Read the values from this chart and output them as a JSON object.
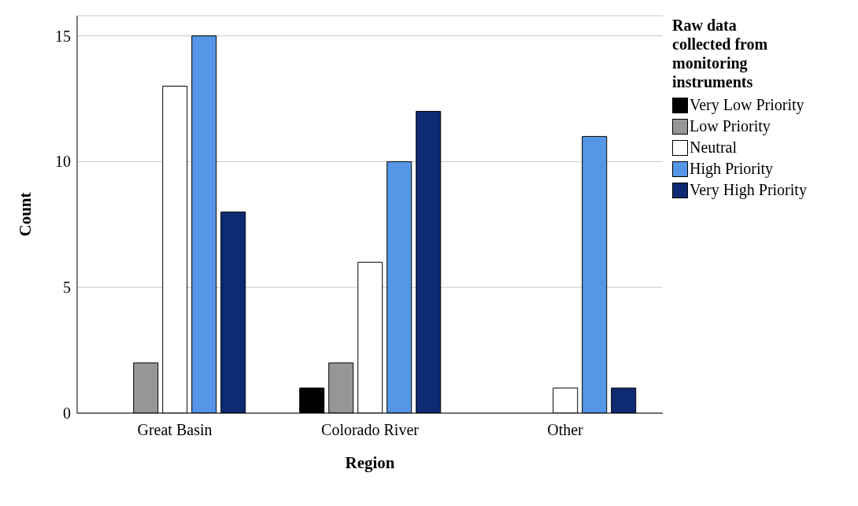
{
  "chart_data": {
    "type": "bar",
    "xlabel": "Region",
    "ylabel": "Count",
    "legend_title": "Raw data collected from monitoring instruments",
    "categories": [
      "Great Basin",
      "Colorado River",
      "Other"
    ],
    "series": [
      {
        "name": "Very Low Priority",
        "color": "#000000",
        "values": [
          null,
          1,
          null
        ]
      },
      {
        "name": "Low Priority",
        "color": "#969696",
        "values": [
          2,
          2,
          null
        ]
      },
      {
        "name": "Neutral",
        "color": "#ffffff",
        "values": [
          13,
          6,
          1
        ]
      },
      {
        "name": "High Priority",
        "color": "#5596e6",
        "values": [
          15,
          10,
          11
        ]
      },
      {
        "name": "Very High Priority",
        "color": "#0d2a72",
        "values": [
          8,
          12,
          1
        ]
      }
    ],
    "ylim": [
      0,
      15.8
    ],
    "yticks": [
      0,
      5,
      10,
      15
    ],
    "grid": "y",
    "legend": "top right"
  }
}
